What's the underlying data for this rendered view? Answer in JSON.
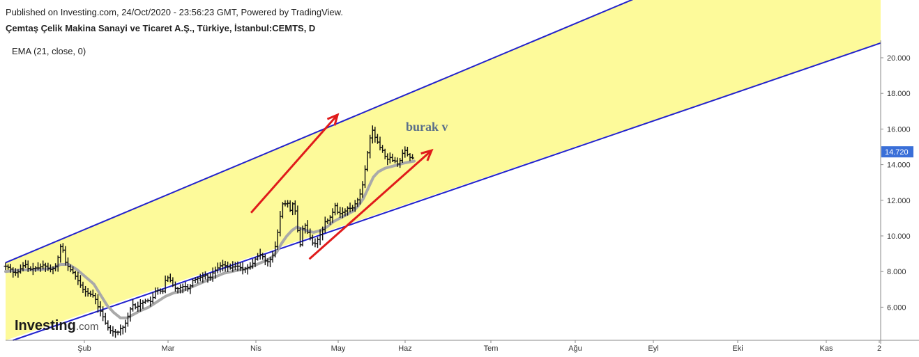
{
  "header": {
    "published": "Published on Investing.com, 24/Oct/2020 - 23:56:23 GMT, Powered by TradingView.",
    "symbol": "Çemtaş Çelik Makina Sanayi ve Ticaret A.Ş., Türkiye, İstanbul:CEMTS, D"
  },
  "indicator": {
    "label": "EMA (21, close, 0)"
  },
  "watermark": {
    "text": "burak v"
  },
  "logo": {
    "main": "Investing",
    "suffix": ".com"
  },
  "price_tag": {
    "value": "14.720",
    "price": 14.72,
    "color": "#3a6fd8"
  },
  "colors": {
    "channel_fill": "#fdfa9a",
    "channel_line": "#2222cc",
    "trend_arrow": "#e01b1b",
    "ema": "#a9a9a9",
    "bars": "#111111"
  },
  "chart_data": {
    "type": "line",
    "title": "Çemtaş Çelik Makina Sanayi ve Ticaret A.Ş., Türkiye, İstanbul:CEMTS, D",
    "ylim": [
      4.2,
      21.0
    ],
    "y_ticks": [
      6.0,
      8.0,
      10.0,
      12.0,
      14.0,
      16.0,
      18.0,
      20.0
    ],
    "y_tick_labels": [
      "6.000",
      "8.000",
      "10.000",
      "12.000",
      "14.000",
      "16.000",
      "18.000",
      "20.000"
    ],
    "x_ticks": [
      "Şub",
      "Mar",
      "Nis",
      "May",
      "Haz",
      "Tem",
      "Ağu",
      "Eyl",
      "Eki",
      "Kas",
      "2"
    ],
    "grid": false,
    "price_points": [
      [
        0,
        8.3
      ],
      [
        5,
        8.2
      ],
      [
        10,
        7.9
      ],
      [
        16,
        8.0
      ],
      [
        20,
        8.3
      ],
      [
        24,
        8.4
      ],
      [
        28,
        8.1
      ],
      [
        35,
        8.2
      ],
      [
        40,
        8.2
      ],
      [
        46,
        8.4
      ],
      [
        50,
        8.2
      ],
      [
        55,
        8.1
      ],
      [
        60,
        8.3
      ],
      [
        63,
        8.8
      ],
      [
        66,
        9.4
      ],
      [
        68,
        9.5
      ],
      [
        71,
        8.6
      ],
      [
        76,
        8.2
      ],
      [
        82,
        7.9
      ],
      [
        88,
        7.4
      ],
      [
        93,
        7.0
      ],
      [
        98,
        6.8
      ],
      [
        103,
        6.7
      ],
      [
        107,
        6.6
      ],
      [
        110,
        6.1
      ],
      [
        115,
        5.7
      ],
      [
        120,
        5.1
      ],
      [
        125,
        4.7
      ],
      [
        130,
        4.6
      ],
      [
        135,
        4.6
      ],
      [
        138,
        4.8
      ],
      [
        142,
        4.9
      ],
      [
        145,
        5.2
      ],
      [
        148,
        5.6
      ],
      [
        152,
        6.2
      ],
      [
        155,
        6.0
      ],
      [
        158,
        6.0
      ],
      [
        162,
        6.2
      ],
      [
        166,
        6.3
      ],
      [
        170,
        6.4
      ],
      [
        175,
        6.3
      ],
      [
        180,
        6.9
      ],
      [
        185,
        7.0
      ],
      [
        188,
        6.7
      ],
      [
        192,
        7.5
      ],
      [
        196,
        7.7
      ],
      [
        200,
        7.3
      ],
      [
        205,
        7.0
      ],
      [
        210,
        7.1
      ],
      [
        215,
        7.2
      ],
      [
        220,
        7.0
      ],
      [
        225,
        7.5
      ],
      [
        230,
        7.6
      ],
      [
        235,
        7.7
      ],
      [
        240,
        7.8
      ],
      [
        245,
        7.6
      ],
      [
        250,
        8.0
      ],
      [
        255,
        8.2
      ],
      [
        260,
        8.4
      ],
      [
        265,
        8.3
      ],
      [
        270,
        8.2
      ],
      [
        275,
        8.3
      ],
      [
        280,
        8.3
      ],
      [
        285,
        8.1
      ],
      [
        290,
        8.2
      ],
      [
        295,
        8.3
      ],
      [
        300,
        8.7
      ],
      [
        305,
        9.0
      ],
      [
        310,
        8.8
      ],
      [
        313,
        8.5
      ],
      [
        317,
        8.6
      ],
      [
        322,
        9.0
      ],
      [
        325,
        9.6
      ],
      [
        328,
        10.5
      ],
      [
        331,
        11.4
      ],
      [
        334,
        12.0
      ],
      [
        337,
        11.7
      ],
      [
        340,
        11.9
      ],
      [
        343,
        11.2
      ],
      [
        346,
        12.1
      ],
      [
        348,
        11.4
      ],
      [
        351,
        10.3
      ],
      [
        354,
        9.5
      ],
      [
        357,
        10.4
      ],
      [
        360,
        10.6
      ],
      [
        363,
        10.2
      ],
      [
        367,
        9.8
      ],
      [
        370,
        9.5
      ],
      [
        373,
        9.6
      ],
      [
        377,
        10.0
      ],
      [
        380,
        10.2
      ],
      [
        384,
        10.8
      ],
      [
        388,
        10.9
      ],
      [
        392,
        11.2
      ],
      [
        396,
        11.7
      ],
      [
        400,
        11.2
      ],
      [
        404,
        11.3
      ],
      [
        408,
        11.4
      ],
      [
        412,
        11.6
      ],
      [
        416,
        11.5
      ],
      [
        420,
        11.8
      ],
      [
        424,
        12.1
      ],
      [
        428,
        12.6
      ],
      [
        431,
        13.4
      ],
      [
        434,
        14.4
      ],
      [
        437,
        15.2
      ],
      [
        440,
        16.1
      ],
      [
        443,
        15.6
      ],
      [
        446,
        15.4
      ],
      [
        449,
        15.0
      ],
      [
        452,
        14.9
      ],
      [
        455,
        14.6
      ],
      [
        458,
        14.2
      ],
      [
        461,
        14.5
      ],
      [
        464,
        14.2
      ],
      [
        467,
        14.3
      ],
      [
        470,
        14.0
      ],
      [
        473,
        14.1
      ],
      [
        476,
        14.5
      ],
      [
        479,
        14.9
      ],
      [
        482,
        14.6
      ],
      [
        485,
        14.5
      ],
      [
        488,
        14.2
      ],
      [
        491,
        14.72
      ]
    ],
    "ema_points": [
      [
        0,
        8.0
      ],
      [
        20,
        8.1
      ],
      [
        40,
        8.1
      ],
      [
        58,
        8.2
      ],
      [
        66,
        8.4
      ],
      [
        76,
        8.4
      ],
      [
        86,
        8.1
      ],
      [
        96,
        7.7
      ],
      [
        106,
        7.3
      ],
      [
        114,
        6.7
      ],
      [
        122,
        6.1
      ],
      [
        130,
        5.7
      ],
      [
        138,
        5.4
      ],
      [
        146,
        5.4
      ],
      [
        154,
        5.6
      ],
      [
        162,
        5.8
      ],
      [
        172,
        6.0
      ],
      [
        182,
        6.3
      ],
      [
        192,
        6.6
      ],
      [
        202,
        6.8
      ],
      [
        212,
        6.9
      ],
      [
        222,
        7.1
      ],
      [
        232,
        7.3
      ],
      [
        242,
        7.5
      ],
      [
        252,
        7.7
      ],
      [
        262,
        7.9
      ],
      [
        272,
        8.0
      ],
      [
        282,
        8.1
      ],
      [
        292,
        8.2
      ],
      [
        302,
        8.4
      ],
      [
        312,
        8.6
      ],
      [
        320,
        8.8
      ],
      [
        326,
        9.1
      ],
      [
        332,
        9.6
      ],
      [
        338,
        10.0
      ],
      [
        344,
        10.3
      ],
      [
        350,
        10.5
      ],
      [
        356,
        10.4
      ],
      [
        362,
        10.3
      ],
      [
        370,
        10.2
      ],
      [
        378,
        10.3
      ],
      [
        386,
        10.5
      ],
      [
        394,
        10.8
      ],
      [
        402,
        11.0
      ],
      [
        410,
        11.2
      ],
      [
        418,
        11.4
      ],
      [
        424,
        11.7
      ],
      [
        430,
        12.1
      ],
      [
        436,
        12.7
      ],
      [
        442,
        13.3
      ],
      [
        448,
        13.6
      ],
      [
        456,
        13.8
      ],
      [
        464,
        13.9
      ],
      [
        472,
        14.0
      ],
      [
        480,
        14.1
      ],
      [
        491,
        14.2
      ]
    ],
    "channel": {
      "upper": [
        [
          0,
          8.5
        ],
        [
          500,
          18.3
        ]
      ],
      "lower": [
        [
          0,
          4.0
        ],
        [
          500,
          12.0
        ]
      ]
    },
    "trend_arrows": [
      [
        [
          295,
          11.3
        ],
        [
          399,
          16.8
        ]
      ],
      [
        [
          365,
          8.7
        ],
        [
          512,
          14.8
        ]
      ]
    ]
  }
}
